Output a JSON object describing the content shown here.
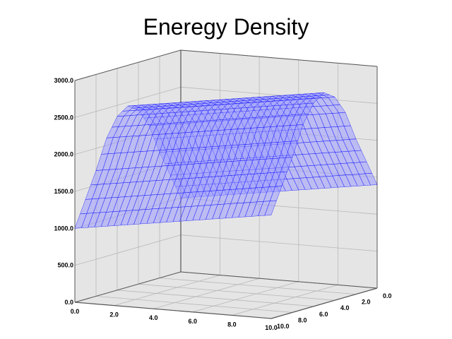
{
  "chart_data": {
    "type": "surface3d",
    "title": "Eneregy Density",
    "xlabel": "",
    "ylabel": "",
    "zlabel": "",
    "x_range": [
      0,
      10
    ],
    "y_range": [
      0,
      10
    ],
    "z_range": [
      0,
      3000
    ],
    "x_ticks": [
      "0.0",
      "2.0",
      "4.0",
      "6.0",
      "8.0",
      "10.0"
    ],
    "y_ticks": [
      "0.0",
      "2.0",
      "4.0",
      "6.0",
      "8.0",
      "10.0"
    ],
    "z_ticks": [
      "0.0",
      "500.0",
      "1000.0",
      "1500.0",
      "2000.0",
      "2500.0",
      "3000.0"
    ],
    "grid": true,
    "surface_color": "#0000ff",
    "surface_fill": "#9a9aff",
    "pane_color": "#e5e5e5",
    "surface_profile_x": [
      0,
      1,
      2,
      3,
      4,
      5,
      6,
      7,
      8,
      9,
      10
    ],
    "surface_profile_z": [
      1000,
      1350,
      1700,
      2100,
      2350,
      2450,
      2350,
      2100,
      1700,
      1350,
      1000
    ],
    "surface_slope_along_y": 40
  }
}
